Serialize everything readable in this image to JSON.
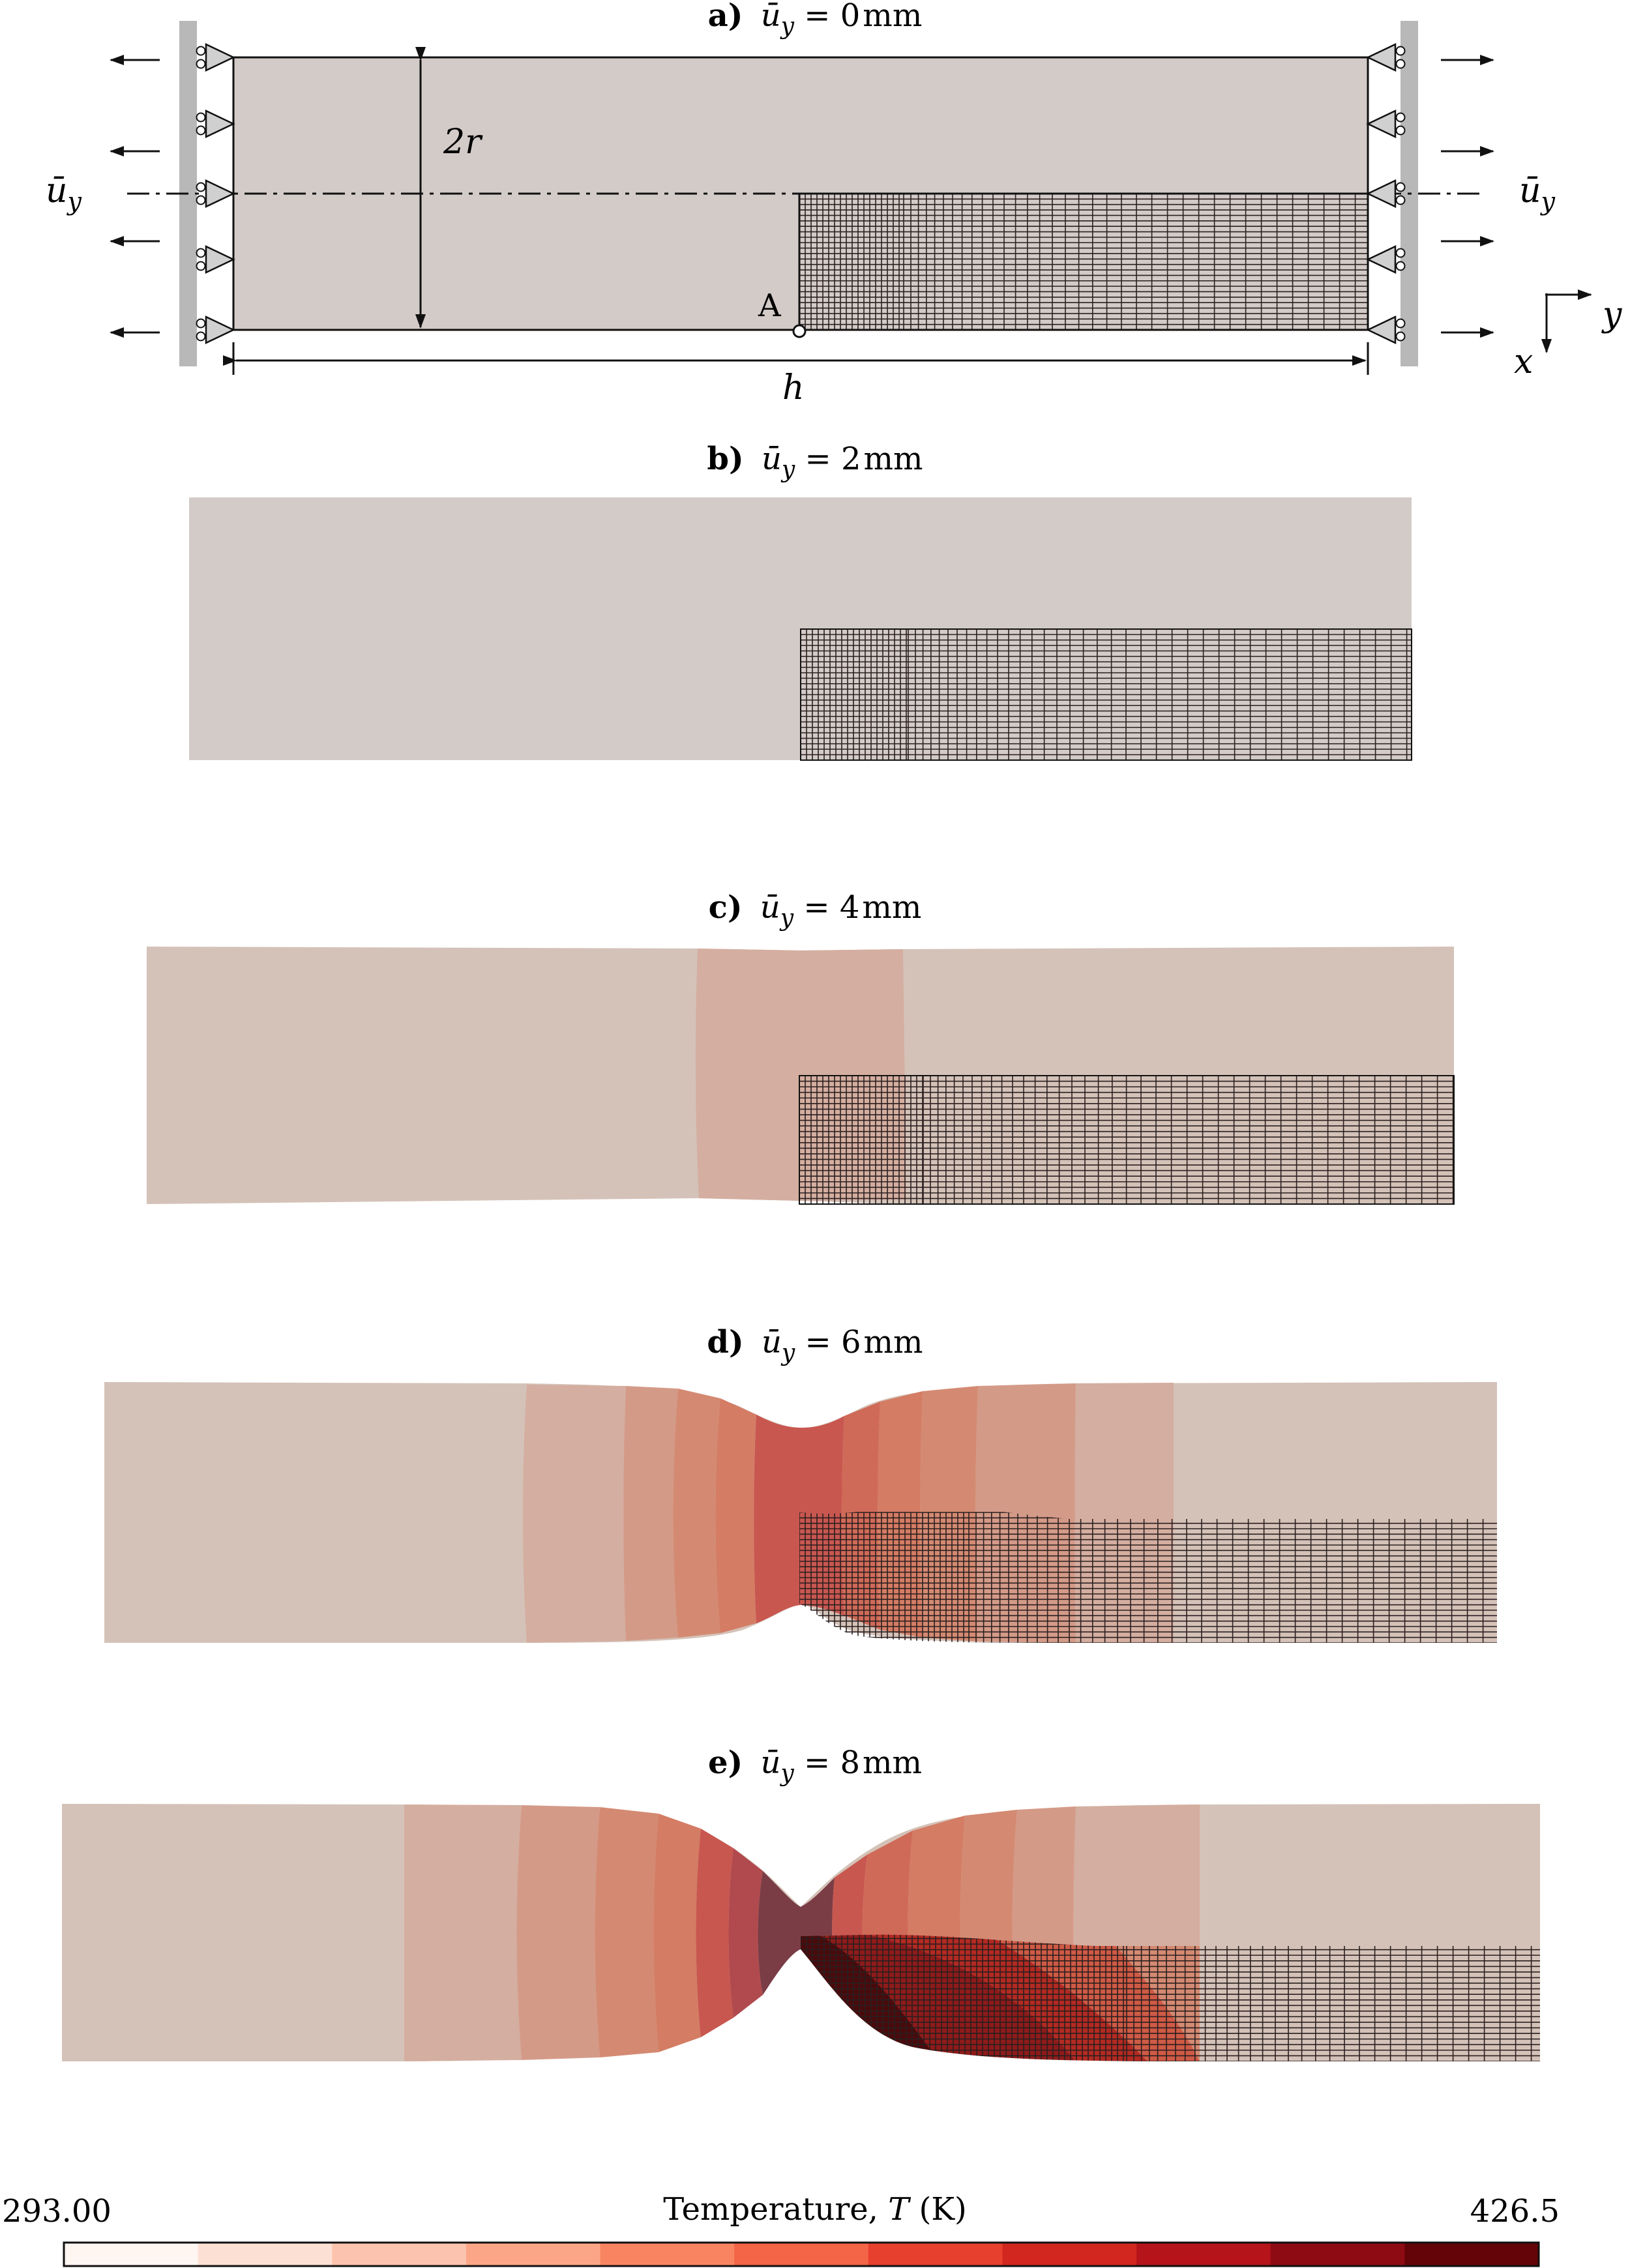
{
  "panels": [
    {
      "letter": "a)",
      "symbol": "ū",
      "subscript": "y",
      "value": "0",
      "unit": "mm"
    },
    {
      "letter": "b)",
      "symbol": "ū",
      "subscript": "y",
      "value": "2",
      "unit": "mm"
    },
    {
      "letter": "c)",
      "symbol": "ū",
      "subscript": "y",
      "value": "4",
      "unit": "mm"
    },
    {
      "letter": "d)",
      "symbol": "ū",
      "subscript": "y",
      "value": "6",
      "unit": "mm"
    },
    {
      "letter": "e)",
      "symbol": "ū",
      "subscript": "y",
      "value": "8",
      "unit": "mm"
    }
  ],
  "annotations": {
    "radius_label": "2r",
    "length_label": "h",
    "point_label": "A",
    "load_left": "ū",
    "load_right": "ū",
    "load_sub": "y",
    "axis_x": "x",
    "axis_y": "y"
  },
  "colorbar": {
    "title_prefix": "Temperature, ",
    "title_symbol": "T",
    "title_unit": " (K)",
    "min_label": "293.00",
    "max_label": "426.5",
    "colors": [
      "#fff6f2",
      "#fde0d4",
      "#fcc4ae",
      "#fca688",
      "#f98462",
      "#f46446",
      "#e8402f",
      "#d2271f",
      "#b5141a",
      "#8f0b13",
      "#640308"
    ]
  },
  "colors": {
    "specimen_base": "#d3cbc8",
    "mesh_line": "#2a1f1f",
    "support": "#b8b8b8"
  }
}
